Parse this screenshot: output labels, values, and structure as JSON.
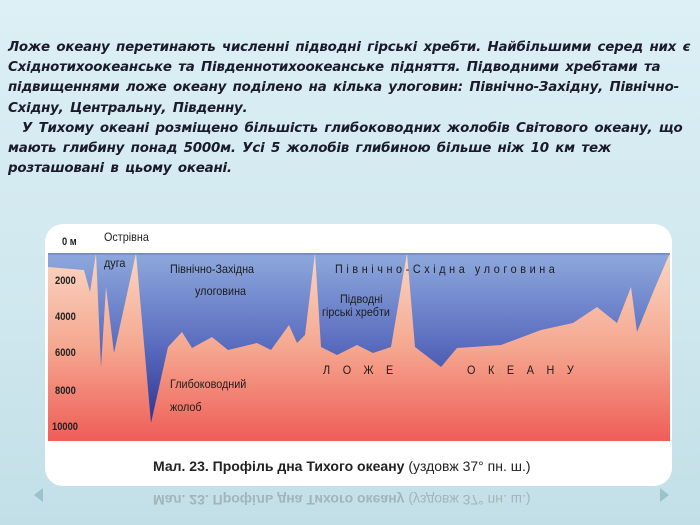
{
  "slide": {
    "paragraph1": "Ложе океану перетинають численні підводні гірські хребти. Найбільшими серед них є Східнотихоокеанське та Південнотихоокеанське підняття. Підводними хребтами та підвищеннями ложе океану поділено на кілька улоговин: Північно-Західну, Північно-Східну, Центральну, Південну.",
    "paragraph2": "У Тихому океані розміщено більшість глибоководних жолобів Світового океану, що мають глибину понад 5000м. Усі 5 жолобів глибиною більше ніж 10 км теж розташовані в цьому океані."
  },
  "figure": {
    "depth_axis": [
      "0 м",
      "2000",
      "4000",
      "6000",
      "8000",
      "10000"
    ],
    "labels": {
      "island_arc_1": "Острівна",
      "island_arc_2": "дуга",
      "nw_basin_1": "Північно-Західна",
      "nw_basin_2": "улоговина",
      "ne_basin": "Північно-Східна улоговина",
      "ridges_1": "Підводні",
      "ridges_2": "гірські хребти",
      "floor_1": "ЛОЖЕ",
      "floor_2": "ОКЕАНУ",
      "trench_1": "Глибоководний",
      "trench_2": "жолоб"
    },
    "caption_bold": "Мал. 23. Профіль дна Тихого океану",
    "caption_normal": "(уздовж 37° пн. ш.)",
    "colors": {
      "water_top": "#8aa6dc",
      "water_deep": "#34399a",
      "floor_top": "#f8cdb8",
      "floor_bottom": "#f0605a"
    }
  },
  "nav": {
    "prev_icon": "triangle-left-icon",
    "next_icon": "triangle-right-icon"
  }
}
